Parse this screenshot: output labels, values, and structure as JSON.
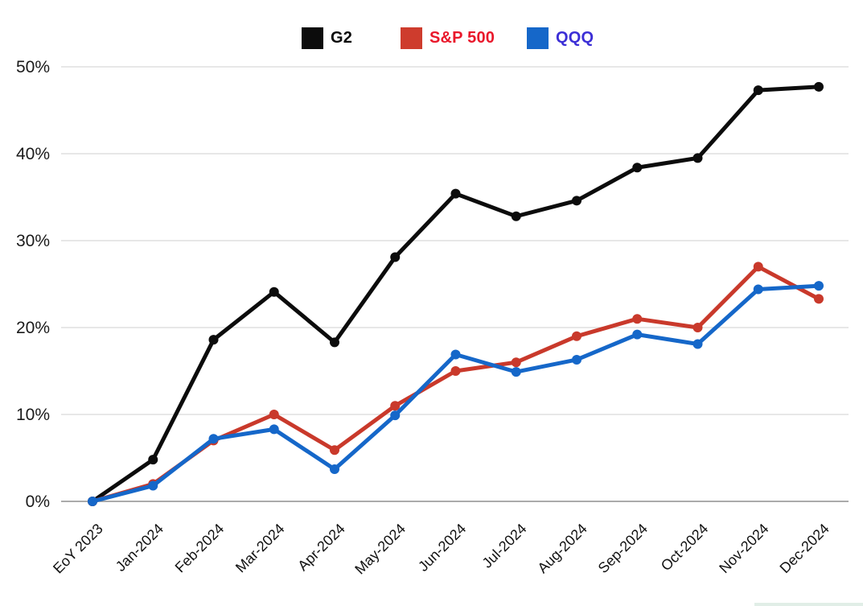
{
  "legend": [
    {
      "label": "G2",
      "swatch": "#0c0c0c",
      "text_color": "#0a0a0a"
    },
    {
      "label": "S&P 500",
      "swatch": "#ce3c2d",
      "text_color": "#e9182b"
    },
    {
      "label": "QQQ",
      "swatch": "#1567c9",
      "text_color": "#3c2fd6"
    }
  ],
  "chart_data": {
    "type": "line",
    "categories": [
      "EoY 2023",
      "Jan-2024",
      "Feb-2024",
      "Mar-2024",
      "Apr-2024",
      "May-2024",
      "Jun-2024",
      "Jul-2024",
      "Aug-2024",
      "Sep-2024",
      "Oct-2024",
      "Nov-2024",
      "Dec-2024"
    ],
    "series": [
      {
        "name": "G2",
        "color": "#0c0c0c",
        "values": [
          0,
          4.8,
          18.6,
          24.1,
          18.3,
          28.1,
          35.4,
          32.8,
          34.6,
          38.4,
          39.5,
          47.3,
          47.7
        ]
      },
      {
        "name": "S&P 500",
        "color": "#c9392b",
        "values": [
          0,
          2.0,
          7.0,
          10.0,
          5.9,
          11.0,
          15.0,
          16.0,
          19.0,
          21.0,
          20.0,
          27.0,
          23.3
        ]
      },
      {
        "name": "QQQ",
        "color": "#1567c9",
        "values": [
          0,
          1.8,
          7.2,
          8.3,
          3.7,
          9.9,
          16.9,
          14.9,
          16.3,
          19.2,
          18.1,
          24.4,
          24.8
        ]
      }
    ],
    "y_ticks": [
      "0%",
      "10%",
      "20%",
      "30%",
      "40%",
      "50%"
    ],
    "y_tick_values": [
      0,
      10,
      20,
      30,
      40,
      50
    ],
    "ylim": [
      0,
      50
    ],
    "xlabel": "",
    "ylabel": "",
    "title": "",
    "grid": true,
    "legend_position": "top",
    "colors": {
      "gridline": "#e7e7e7",
      "zero_axis": "#8f8f8f",
      "tick_text": "#1b1b1b"
    }
  }
}
